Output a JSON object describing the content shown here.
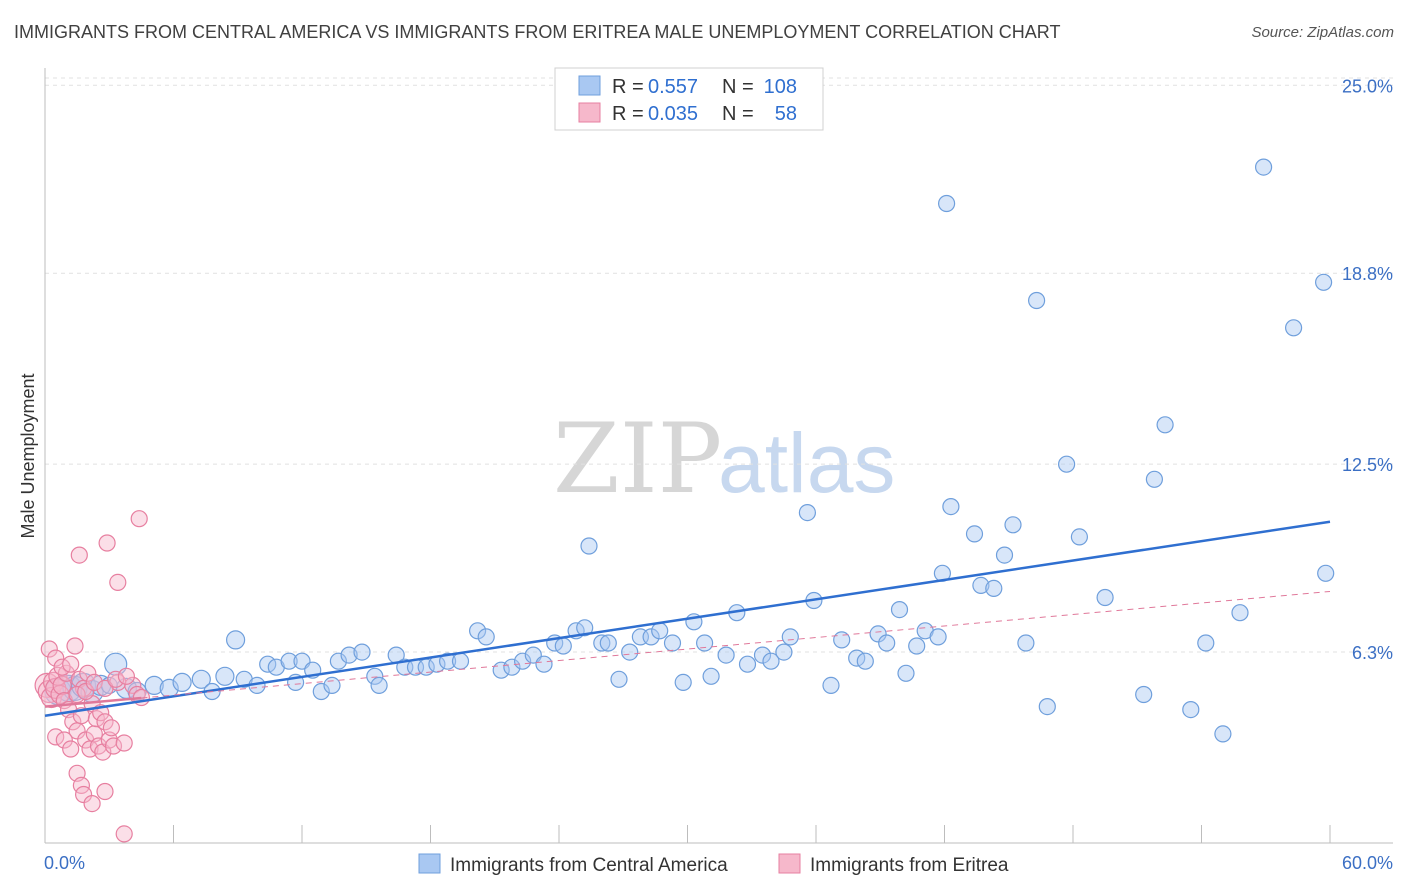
{
  "header": {
    "title": "IMMIGRANTS FROM CENTRAL AMERICA VS IMMIGRANTS FROM ERITREA MALE UNEMPLOYMENT CORRELATION CHART",
    "source": "Source: ZipAtlas.com"
  },
  "watermark": {
    "zip": "ZIP",
    "atlas": "atlas"
  },
  "legend_top": [
    {
      "r_label": "R =",
      "r_value": "0.557",
      "n_label": "N =",
      "n_value": "108",
      "color": "#a9c8f2"
    },
    {
      "r_label": "R =",
      "r_value": "0.035",
      "n_label": "N =",
      "n_value": "58",
      "color": "#f6b8cb"
    }
  ],
  "legend_bottom": [
    {
      "label": "Immigrants from Central America",
      "color": "#a9c8f2"
    },
    {
      "label": "Immigrants from Eritrea",
      "color": "#f6b8cb"
    }
  ],
  "chart_data": {
    "type": "scatter",
    "title": "IMMIGRANTS FROM CENTRAL AMERICA VS IMMIGRANTS FROM ERITREA MALE UNEMPLOYMENT CORRELATION CHART",
    "ylabel": "Male Unemployment",
    "xlim": [
      0,
      60
    ],
    "ylim": [
      0,
      26.0
    ],
    "x_tick_labels": [
      "0.0%",
      "60.0%"
    ],
    "y_ticks": [
      {
        "value": 6.3,
        "label": "6.3%"
      },
      {
        "value": 12.5,
        "label": "12.5%"
      },
      {
        "value": 18.8,
        "label": "18.8%"
      },
      {
        "value": 25.0,
        "label": "25.0%"
      }
    ],
    "grid": true,
    "series": [
      {
        "name": "Immigrants from Central America",
        "color": "#a9c8f2",
        "stroke": "#6f9fdc",
        "trend": {
          "x": [
            0,
            60
          ],
          "y": [
            4.2,
            10.6
          ],
          "color": "#2f6fd0",
          "dashed": false
        },
        "points": [
          [
            0.6,
            5.0,
            13
          ],
          [
            1.1,
            5.1,
            13
          ],
          [
            1.4,
            5.1,
            12
          ],
          [
            1.8,
            5.2,
            12
          ],
          [
            2.2,
            5.0,
            11
          ],
          [
            2.6,
            5.2,
            10
          ],
          [
            3.3,
            5.9,
            11
          ],
          [
            3.8,
            5.1,
            10
          ],
          [
            4.3,
            5.0,
            9
          ],
          [
            5.1,
            5.2,
            9
          ],
          [
            5.8,
            5.1,
            9
          ],
          [
            6.4,
            5.3,
            9
          ],
          [
            7.3,
            5.4,
            9
          ],
          [
            7.8,
            5.0,
            8
          ],
          [
            8.4,
            5.5,
            9
          ],
          [
            8.9,
            6.7,
            9
          ],
          [
            9.3,
            5.4,
            8
          ],
          [
            9.9,
            5.2,
            8
          ],
          [
            10.4,
            5.9,
            8
          ],
          [
            10.8,
            5.8,
            8
          ],
          [
            11.4,
            6.0,
            8
          ],
          [
            11.7,
            5.3,
            8
          ],
          [
            12.0,
            6.0,
            8
          ],
          [
            12.5,
            5.7,
            8
          ],
          [
            12.9,
            5.0,
            8
          ],
          [
            13.4,
            5.2,
            8
          ],
          [
            13.7,
            6.0,
            8
          ],
          [
            14.2,
            6.2,
            8
          ],
          [
            14.8,
            6.3,
            8
          ],
          [
            15.4,
            5.5,
            8
          ],
          [
            15.6,
            5.2,
            8
          ],
          [
            16.4,
            6.2,
            8
          ],
          [
            16.8,
            5.8,
            8
          ],
          [
            17.3,
            5.8,
            8
          ],
          [
            17.8,
            5.8,
            8
          ],
          [
            18.3,
            5.9,
            8
          ],
          [
            18.8,
            6.0,
            8
          ],
          [
            19.4,
            6.0,
            8
          ],
          [
            20.2,
            7.0,
            8
          ],
          [
            20.6,
            6.8,
            8
          ],
          [
            21.3,
            5.7,
            8
          ],
          [
            21.8,
            5.8,
            8
          ],
          [
            22.3,
            6.0,
            8
          ],
          [
            22.8,
            6.2,
            8
          ],
          [
            23.3,
            5.9,
            8
          ],
          [
            23.8,
            6.6,
            8
          ],
          [
            24.2,
            6.5,
            8
          ],
          [
            24.8,
            7.0,
            8
          ],
          [
            25.2,
            7.1,
            8
          ],
          [
            25.4,
            9.8,
            8
          ],
          [
            26.0,
            6.6,
            8
          ],
          [
            26.3,
            6.6,
            8
          ],
          [
            26.8,
            5.4,
            8
          ],
          [
            27.3,
            6.3,
            8
          ],
          [
            27.8,
            6.8,
            8
          ],
          [
            28.3,
            6.8,
            8
          ],
          [
            28.7,
            7.0,
            8
          ],
          [
            29.3,
            6.6,
            8
          ],
          [
            29.8,
            5.3,
            8
          ],
          [
            30.3,
            7.3,
            8
          ],
          [
            30.8,
            6.6,
            8
          ],
          [
            31.1,
            5.5,
            8
          ],
          [
            31.8,
            6.2,
            8
          ],
          [
            32.3,
            7.6,
            8
          ],
          [
            32.8,
            5.9,
            8
          ],
          [
            33.5,
            6.2,
            8
          ],
          [
            33.9,
            6.0,
            8
          ],
          [
            34.5,
            6.3,
            8
          ],
          [
            34.8,
            6.8,
            8
          ],
          [
            35.6,
            10.9,
            8
          ],
          [
            35.9,
            8.0,
            8
          ],
          [
            36.7,
            5.2,
            8
          ],
          [
            37.2,
            6.7,
            8
          ],
          [
            37.9,
            6.1,
            8
          ],
          [
            38.3,
            6.0,
            8
          ],
          [
            38.9,
            6.9,
            8
          ],
          [
            39.3,
            6.6,
            8
          ],
          [
            39.9,
            7.7,
            8
          ],
          [
            40.2,
            5.6,
            8
          ],
          [
            40.7,
            6.5,
            8
          ],
          [
            41.1,
            7.0,
            8
          ],
          [
            41.7,
            6.8,
            8
          ],
          [
            41.9,
            8.9,
            8
          ],
          [
            42.3,
            11.1,
            8
          ],
          [
            43.4,
            10.2,
            8
          ],
          [
            43.7,
            8.5,
            8
          ],
          [
            44.3,
            8.4,
            8
          ],
          [
            44.8,
            9.5,
            8
          ],
          [
            45.2,
            10.5,
            8
          ],
          [
            45.8,
            6.6,
            8
          ],
          [
            46.3,
            17.9,
            8
          ],
          [
            46.8,
            4.5,
            8
          ],
          [
            47.7,
            12.5,
            8
          ],
          [
            48.3,
            10.1,
            8
          ],
          [
            49.5,
            8.1,
            8
          ],
          [
            51.3,
            4.9,
            8
          ],
          [
            51.8,
            12.0,
            8
          ],
          [
            52.3,
            13.8,
            8
          ],
          [
            53.5,
            4.4,
            8
          ],
          [
            54.2,
            6.6,
            8
          ],
          [
            55.0,
            3.6,
            8
          ],
          [
            55.8,
            7.6,
            8
          ],
          [
            56.9,
            22.3,
            8
          ],
          [
            58.3,
            17.0,
            8
          ],
          [
            59.7,
            18.5,
            8
          ],
          [
            59.8,
            8.9,
            8
          ],
          [
            42.1,
            21.1,
            8
          ],
          [
            3.0,
            5.2,
            8
          ]
        ]
      },
      {
        "name": "Immigrants from Eritrea",
        "color": "#f6b8cb",
        "stroke": "#e77fa0",
        "trend": {
          "x": [
            0,
            60
          ],
          "y": [
            4.5,
            8.3
          ],
          "color": "#e0789a",
          "dashed": true
        },
        "points": [
          [
            0.1,
            5.2,
            12
          ],
          [
            0.2,
            5.0,
            11
          ],
          [
            0.3,
            4.8,
            10
          ],
          [
            0.4,
            5.3,
            10
          ],
          [
            0.5,
            5.1,
            10
          ],
          [
            0.6,
            5.5,
            9
          ],
          [
            0.7,
            4.9,
            9
          ],
          [
            0.8,
            5.2,
            9
          ],
          [
            0.9,
            4.7,
            8
          ],
          [
            1.0,
            5.6,
            8
          ],
          [
            0.2,
            6.4,
            8
          ],
          [
            0.5,
            6.1,
            8
          ],
          [
            0.8,
            5.8,
            8
          ],
          [
            1.2,
            5.9,
            8
          ],
          [
            1.4,
            6.5,
            8
          ],
          [
            1.6,
            5.4,
            8
          ],
          [
            1.8,
            5.1,
            8
          ],
          [
            2.0,
            5.6,
            8
          ],
          [
            1.1,
            4.4,
            8
          ],
          [
            1.3,
            4.0,
            8
          ],
          [
            1.5,
            3.7,
            8
          ],
          [
            1.7,
            4.2,
            8
          ],
          [
            1.9,
            3.4,
            8
          ],
          [
            2.1,
            3.1,
            8
          ],
          [
            2.3,
            3.6,
            8
          ],
          [
            2.5,
            3.2,
            8
          ],
          [
            2.7,
            3.0,
            8
          ],
          [
            3.0,
            3.4,
            8
          ],
          [
            3.2,
            3.2,
            8
          ],
          [
            0.5,
            3.5,
            8
          ],
          [
            0.9,
            3.4,
            8
          ],
          [
            1.2,
            3.1,
            8
          ],
          [
            1.5,
            2.3,
            8
          ],
          [
            1.7,
            1.9,
            8
          ],
          [
            1.8,
            1.6,
            8
          ],
          [
            2.2,
            4.6,
            8
          ],
          [
            2.4,
            4.1,
            8
          ],
          [
            2.6,
            4.3,
            8
          ],
          [
            2.8,
            4.0,
            8
          ],
          [
            3.1,
            3.8,
            8
          ],
          [
            3.4,
            5.3,
            8
          ],
          [
            3.7,
            3.3,
            8
          ],
          [
            4.1,
            5.2,
            8
          ],
          [
            1.5,
            4.9,
            8
          ],
          [
            1.9,
            5.0,
            8
          ],
          [
            2.3,
            5.3,
            8
          ],
          [
            2.8,
            5.1,
            8
          ],
          [
            3.3,
            5.4,
            8
          ],
          [
            3.8,
            5.5,
            8
          ],
          [
            4.3,
            4.9,
            8
          ],
          [
            1.6,
            9.5,
            8
          ],
          [
            2.9,
            9.9,
            8
          ],
          [
            3.4,
            8.6,
            8
          ],
          [
            4.4,
            10.7,
            8
          ],
          [
            2.2,
            1.3,
            8
          ],
          [
            2.8,
            1.7,
            8
          ],
          [
            3.7,
            0.3,
            8
          ],
          [
            4.5,
            4.8,
            8
          ]
        ]
      }
    ]
  }
}
